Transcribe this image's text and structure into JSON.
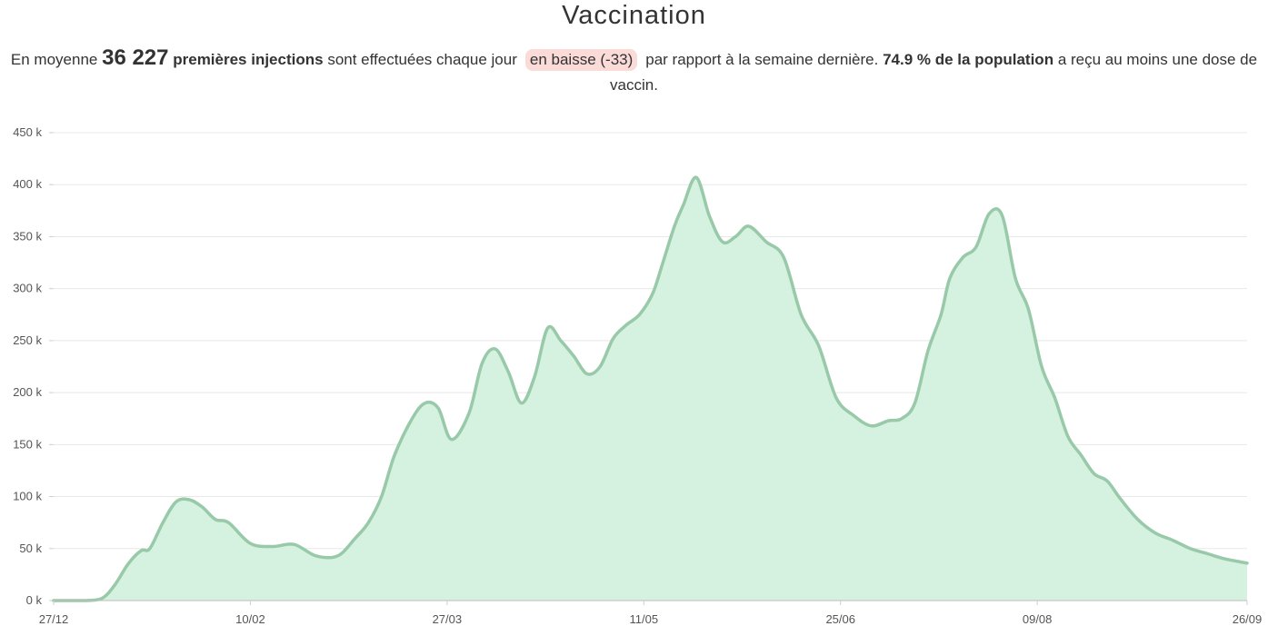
{
  "title": "Vaccination",
  "summary": {
    "prefix": "En moyenne",
    "average": "36 227",
    "metric": "premières injections",
    "middle": "sont effectuées chaque jour",
    "trend": "en baisse (-33)",
    "after_trend": "par rapport à la semaine dernière.",
    "population": "74.9 % de la population",
    "suffix": "a reçu au moins une dose de vaccin."
  },
  "colors": {
    "line": "#98c9a9",
    "fill": "#d5f1df",
    "grid": "#e8e8e8",
    "badge": "#fadbd8"
  },
  "chart_data": {
    "type": "area",
    "title": "Vaccination",
    "xlabel": "",
    "ylabel": "",
    "ylim": [
      0,
      450000
    ],
    "yticks": [
      0,
      50000,
      100000,
      150000,
      200000,
      250000,
      300000,
      350000,
      400000,
      450000
    ],
    "ytick_labels": [
      "0 k",
      "50 k",
      "100 k",
      "150 k",
      "200 k",
      "250 k",
      "300 k",
      "350 k",
      "400 k",
      "450 k"
    ],
    "xticks": [
      "2020-12-27",
      "2021-02-10",
      "2021-03-27",
      "2021-05-11",
      "2021-06-25",
      "2021-08-09",
      "2021-09-26"
    ],
    "xtick_labels": [
      "27/12",
      "10/02",
      "27/03",
      "11/05",
      "25/06",
      "09/08",
      "26/09"
    ],
    "grid": true,
    "legend": "none",
    "series": [
      {
        "x": [
          "2020-12-27",
          "2021-01-03",
          "2021-01-07",
          "2021-01-10",
          "2021-01-13",
          "2021-01-16",
          "2021-01-18",
          "2021-01-21",
          "2021-01-24",
          "2021-01-27",
          "2021-01-30",
          "2021-02-02",
          "2021-02-05",
          "2021-02-10",
          "2021-02-15",
          "2021-02-20",
          "2021-02-25",
          "2021-03-02",
          "2021-03-06",
          "2021-03-09",
          "2021-03-12",
          "2021-03-15",
          "2021-03-19",
          "2021-03-22",
          "2021-03-25",
          "2021-03-28",
          "2021-04-01",
          "2021-04-04",
          "2021-04-07",
          "2021-04-10",
          "2021-04-13",
          "2021-04-16",
          "2021-04-19",
          "2021-04-22",
          "2021-04-25",
          "2021-04-28",
          "2021-05-01",
          "2021-05-04",
          "2021-05-07",
          "2021-05-10",
          "2021-05-13",
          "2021-05-15",
          "2021-05-18",
          "2021-05-20",
          "2021-05-23",
          "2021-05-26",
          "2021-05-29",
          "2021-06-01",
          "2021-06-04",
          "2021-06-08",
          "2021-06-12",
          "2021-06-16",
          "2021-06-20",
          "2021-06-24",
          "2021-06-28",
          "2021-07-02",
          "2021-07-06",
          "2021-07-09",
          "2021-07-12",
          "2021-07-15",
          "2021-07-18",
          "2021-07-20",
          "2021-07-23",
          "2021-07-26",
          "2021-07-29",
          "2021-08-01",
          "2021-08-04",
          "2021-08-07",
          "2021-08-10",
          "2021-08-13",
          "2021-08-16",
          "2021-08-19",
          "2021-08-22",
          "2021-08-25",
          "2021-08-28",
          "2021-09-01",
          "2021-09-05",
          "2021-09-09",
          "2021-09-13",
          "2021-09-17",
          "2021-09-21",
          "2021-09-26"
        ],
        "y": [
          0,
          0,
          2000,
          15000,
          35000,
          48000,
          50000,
          75000,
          95000,
          97000,
          90000,
          78000,
          75000,
          55000,
          52000,
          54000,
          43000,
          43000,
          60000,
          75000,
          100000,
          140000,
          175000,
          190000,
          185000,
          155000,
          180000,
          228000,
          242000,
          220000,
          190000,
          215000,
          262000,
          250000,
          235000,
          218000,
          225000,
          252000,
          265000,
          275000,
          295000,
          320000,
          360000,
          380000,
          407000,
          370000,
          345000,
          350000,
          360000,
          345000,
          330000,
          275000,
          245000,
          195000,
          178000,
          168000,
          173000,
          175000,
          190000,
          240000,
          275000,
          310000,
          330000,
          340000,
          372000,
          370000,
          310000,
          280000,
          225000,
          195000,
          158000,
          140000,
          122000,
          115000,
          98000,
          78000,
          65000,
          58000,
          50000,
          45000,
          40000,
          36000
        ]
      }
    ]
  }
}
